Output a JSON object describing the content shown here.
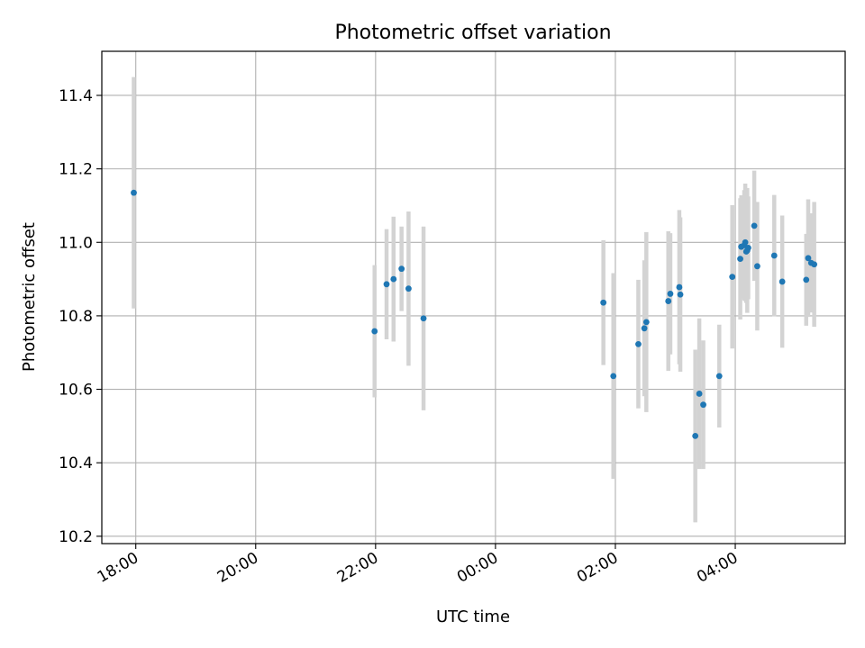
{
  "chart_data": {
    "type": "scatter",
    "title": "Photometric offset variation",
    "xlabel": "UTC time",
    "ylabel": "Photometric offset",
    "x_tick_labels": [
      "18:00",
      "20:00",
      "22:00",
      "00:00",
      "02:00",
      "04:00"
    ],
    "x_ticks": [
      "2000-01-01 18:00",
      "2000-01-01 20:00",
      "2000-01-01 22:00",
      "2000-01-02 00:00",
      "2000-01-02 02:00",
      "2000-01-02 04:00"
    ],
    "xlim": [
      "2000-01-01 17:26",
      "2000-01-02 05:50"
    ],
    "ylim": [
      10.18,
      11.52
    ],
    "y_ticks": [
      10.2,
      10.4,
      10.6,
      10.8,
      11.0,
      11.2,
      11.4
    ],
    "y_tick_labels": [
      "10.2",
      "10.4",
      "10.6",
      "10.8",
      "11.0",
      "11.2",
      "11.4"
    ],
    "grid": true,
    "marker_color": "#1f77b4",
    "errorbar_color": "#d3d3d3",
    "points": [
      {
        "x": "2000-01-01 17:58",
        "y": 11.135,
        "err": 0.315
      },
      {
        "x": "2000-01-01 21:59",
        "y": 10.758,
        "err": 0.18
      },
      {
        "x": "2000-01-01 22:11",
        "y": 10.886,
        "err": 0.15
      },
      {
        "x": "2000-01-01 22:18",
        "y": 10.9,
        "err": 0.17
      },
      {
        "x": "2000-01-01 22:26",
        "y": 10.928,
        "err": 0.115
      },
      {
        "x": "2000-01-01 22:33",
        "y": 10.874,
        "err": 0.21
      },
      {
        "x": "2000-01-01 22:48",
        "y": 10.793,
        "err": 0.25
      },
      {
        "x": "2000-01-02 01:48",
        "y": 10.836,
        "err": 0.17
      },
      {
        "x": "2000-01-02 01:58",
        "y": 10.636,
        "err": 0.28
      },
      {
        "x": "2000-01-02 02:23",
        "y": 10.723,
        "err": 0.175
      },
      {
        "x": "2000-01-02 02:29",
        "y": 10.766,
        "err": 0.185
      },
      {
        "x": "2000-01-02 02:31",
        "y": 10.783,
        "err": 0.245
      },
      {
        "x": "2000-01-02 02:53",
        "y": 10.84,
        "err": 0.19
      },
      {
        "x": "2000-01-02 02:55",
        "y": 10.86,
        "err": 0.165
      },
      {
        "x": "2000-01-02 03:04",
        "y": 10.878,
        "err": 0.21
      },
      {
        "x": "2000-01-02 03:05",
        "y": 10.858,
        "err": 0.21
      },
      {
        "x": "2000-01-02 03:20",
        "y": 10.473,
        "err": 0.235
      },
      {
        "x": "2000-01-02 03:24",
        "y": 10.588,
        "err": 0.205
      },
      {
        "x": "2000-01-02 03:28",
        "y": 10.558,
        "err": 0.175
      },
      {
        "x": "2000-01-02 03:44",
        "y": 10.636,
        "err": 0.14
      },
      {
        "x": "2000-01-02 03:57",
        "y": 10.906,
        "err": 0.195
      },
      {
        "x": "2000-01-02 04:05",
        "y": 10.955,
        "err": 0.165
      },
      {
        "x": "2000-01-02 04:06",
        "y": 10.988,
        "err": 0.14
      },
      {
        "x": "2000-01-02 04:09",
        "y": 10.992,
        "err": 0.15
      },
      {
        "x": "2000-01-02 04:10",
        "y": 11.0,
        "err": 0.16
      },
      {
        "x": "2000-01-02 04:11",
        "y": 10.975,
        "err": 0.14
      },
      {
        "x": "2000-01-02 04:12",
        "y": 10.978,
        "err": 0.17
      },
      {
        "x": "2000-01-02 04:13",
        "y": 10.985,
        "err": 0.14
      },
      {
        "x": "2000-01-02 04:19",
        "y": 11.045,
        "err": 0.15
      },
      {
        "x": "2000-01-02 04:22",
        "y": 10.935,
        "err": 0.175
      },
      {
        "x": "2000-01-02 04:39",
        "y": 10.964,
        "err": 0.165
      },
      {
        "x": "2000-01-02 04:47",
        "y": 10.893,
        "err": 0.18
      },
      {
        "x": "2000-01-02 05:11",
        "y": 10.898,
        "err": 0.125
      },
      {
        "x": "2000-01-02 05:13",
        "y": 10.957,
        "err": 0.16
      },
      {
        "x": "2000-01-02 05:16",
        "y": 10.944,
        "err": 0.135
      },
      {
        "x": "2000-01-02 05:19",
        "y": 10.94,
        "err": 0.17
      }
    ]
  }
}
